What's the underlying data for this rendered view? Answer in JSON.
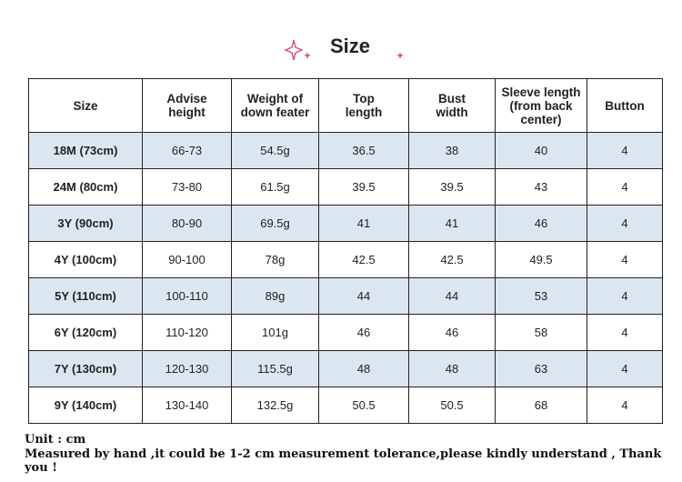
{
  "title": "Size",
  "table": {
    "header": [
      "Size",
      "Advise height",
      "Weight of down feater",
      "Top length",
      "Bust width",
      "Sleeve length (from back center)",
      "Button"
    ],
    "rows": [
      [
        "18M (73cm)",
        "66-73",
        "54.5g",
        "36.5",
        "38",
        "40",
        "4"
      ],
      [
        "24M (80cm)",
        "73-80",
        "61.5g",
        "39.5",
        "39.5",
        "43",
        "4"
      ],
      [
        "3Y (90cm)",
        "80-90",
        "69.5g",
        "41",
        "41",
        "46",
        "4"
      ],
      [
        "4Y (100cm)",
        "90-100",
        "78g",
        "42.5",
        "42.5",
        "49.5",
        "4"
      ],
      [
        "5Y (110cm)",
        "100-110",
        "89g",
        "44",
        "44",
        "53",
        "4"
      ],
      [
        "6Y (120cm)",
        "110-120",
        "101g",
        "46",
        "46",
        "58",
        "4"
      ],
      [
        "7Y (130cm)",
        "120-130",
        "115.5g",
        "48",
        "48",
        "63",
        "4"
      ],
      [
        "9Y (140cm)",
        "130-140",
        "132.5g",
        "50.5",
        "50.5",
        "68",
        "4"
      ]
    ]
  },
  "notes": [
    "Unit : cm",
    "Measured by hand ,it could be 1-2 cm measurement tolerance,please kindly understand , Thank you !"
  ]
}
